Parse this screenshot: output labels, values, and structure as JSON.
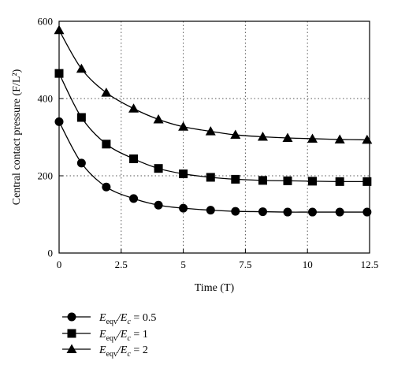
{
  "chart_data": {
    "type": "line",
    "title": "",
    "xlabel": "Time (T)",
    "ylabel": "Central contact pressure (F/L²)",
    "xlim": [
      0,
      12.5
    ],
    "ylim": [
      0,
      600
    ],
    "xticks": [
      0,
      2.5,
      5,
      7.5,
      10,
      12.5
    ],
    "xtick_labels": [
      "0",
      "2.5",
      "5",
      "7.5",
      "10",
      "12.5"
    ],
    "yticks": [
      0,
      200,
      400,
      600
    ],
    "ytick_labels": [
      "0",
      "200",
      "400",
      "600"
    ],
    "grid": "dotted",
    "legend_position": "bottom-left",
    "series": [
      {
        "name": "E_eqv/E_c = 0.5",
        "legend": {
          "main": "E",
          "sub": "eqv",
          "main2": "/E",
          "sub2": "c",
          "rest": " = 0.5"
        },
        "marker": "circle",
        "x": [
          0,
          0.9,
          1.9,
          3,
          4,
          5,
          6.1,
          7.1,
          8.2,
          9.2,
          10.2,
          11.3,
          12.4
        ],
        "y": [
          340,
          233,
          171,
          141,
          124,
          116,
          111,
          108,
          107,
          106,
          106,
          106,
          106
        ]
      },
      {
        "name": "E_eqv/E_c = 1",
        "legend": {
          "main": "E",
          "sub": "eqv",
          "main2": "/E",
          "sub2": "c",
          "rest": " = 1"
        },
        "marker": "square",
        "x": [
          0,
          0.9,
          1.9,
          3,
          4,
          5,
          6.1,
          7.1,
          8.2,
          9.2,
          10.2,
          11.3,
          12.4
        ],
        "y": [
          465,
          351,
          282,
          244,
          219,
          205,
          196,
          191,
          188,
          187,
          186,
          185,
          185
        ]
      },
      {
        "name": "E_eqv/E_c = 2",
        "legend": {
          "main": "E",
          "sub": "eqv",
          "main2": "/E",
          "sub2": "c",
          "rest": " = 2"
        },
        "marker": "triangle",
        "x": [
          0,
          0.9,
          1.9,
          3,
          4,
          5,
          6.1,
          7.1,
          8.2,
          9.2,
          10.2,
          11.3,
          12.4
        ],
        "y": [
          577,
          477,
          415,
          374,
          346,
          327,
          315,
          306,
          301,
          298,
          296,
          294,
          293
        ]
      }
    ]
  }
}
